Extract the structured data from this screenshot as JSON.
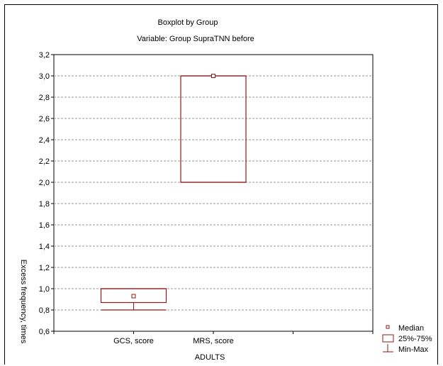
{
  "chart_data": {
    "type": "boxplot",
    "title": "Boxplot by Group",
    "subtitle": "Variable: Group SupraTNN  before",
    "xlabel": "ADULTS",
    "ylabel": "Excess frequency, times",
    "ylim": [
      0.6,
      3.2
    ],
    "yticks": [
      "0,6",
      "0,8",
      "1,0",
      "1,2",
      "1,4",
      "1,6",
      "1,8",
      "2,0",
      "2,2",
      "2,4",
      "2,6",
      "2,8",
      "3,0",
      "3,2"
    ],
    "categories": [
      "GCS, score",
      "MRS, score"
    ],
    "boxes": [
      {
        "category": "GCS, score",
        "min": 0.8,
        "q1": 0.87,
        "median": 0.93,
        "q3": 1.0,
        "max": 1.0
      },
      {
        "category": "MRS, score",
        "min": 2.0,
        "q1": 2.0,
        "median": 3.0,
        "q3": 3.0,
        "max": 3.0
      }
    ],
    "grid": "horizontal-dashed",
    "legend": {
      "position": "bottom-right",
      "entries": [
        "Median",
        "25%-75%",
        "Min-Max"
      ]
    },
    "colors": {
      "box": "#8b1a1a",
      "grid": "#9a9a9a"
    }
  }
}
